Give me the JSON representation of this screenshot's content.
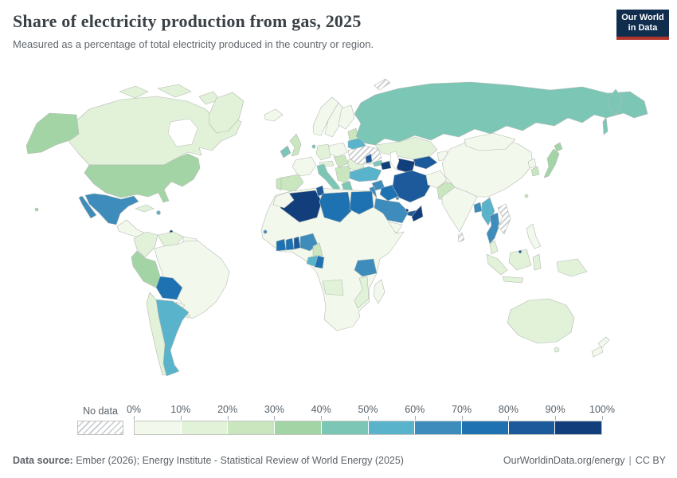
{
  "header": {
    "title": "Share of electricity production from gas, 2025",
    "subtitle": "Measured as a percentage of total electricity produced in the country or region.",
    "logo": {
      "line1": "Our World",
      "line2": "in Data",
      "bg": "#102d4e",
      "accent": "#b0342b"
    }
  },
  "legend": {
    "no_data_label": "No data",
    "tick_labels": [
      "0%",
      "10%",
      "20%",
      "30%",
      "40%",
      "50%",
      "60%",
      "70%",
      "80%",
      "90%",
      "100%"
    ],
    "colors": [
      "#f2f9ec",
      "#e1f2d9",
      "#c9e6bf",
      "#a3d4a5",
      "#7cc6b6",
      "#59b3ca",
      "#3d8cbc",
      "#1f72b2",
      "#1d5a9c",
      "#123f7c"
    ]
  },
  "footer": {
    "source_label": "Data source:",
    "source_text": " Ember (2026); Energy Institute - Statistical Review of World Energy (2025)",
    "link_text": "OurWorldinData.org/energy",
    "separator": "|",
    "license": "CC BY"
  },
  "chart_data": {
    "type": "heatmap",
    "map_type": "world-choropleth",
    "title": "Share of electricity production from gas, 2025",
    "unit": "% of total electricity production",
    "legend_buckets": [
      "0-10%",
      "10-20%",
      "20-30%",
      "30-40%",
      "40-50%",
      "50-60%",
      "60-70%",
      "70-80%",
      "80-90%",
      "90-100%",
      "No data"
    ],
    "regions": [
      {
        "key": "canada",
        "name": "Canada",
        "value": "10-20%"
      },
      {
        "key": "greenland",
        "name": "Greenland",
        "value": "10-20%"
      },
      {
        "key": "united-states",
        "name": "United States",
        "value": "30-40%"
      },
      {
        "key": "mexico",
        "name": "Mexico",
        "value": "60-70%"
      },
      {
        "key": "central-america",
        "name": "Central America",
        "value": "0-10%"
      },
      {
        "key": "cuba",
        "name": "Cuba",
        "value": "10-20%"
      },
      {
        "key": "dominican-republic",
        "name": "Dominican Republic",
        "value": "50-60%"
      },
      {
        "key": "trinidad-and-tobago",
        "name": "Trinidad and Tobago",
        "value": "90-100%"
      },
      {
        "key": "colombia",
        "name": "Colombia",
        "value": "10-20%"
      },
      {
        "key": "venezuela",
        "name": "Venezuela",
        "value": "10-20%"
      },
      {
        "key": "guyana-suriname",
        "name": "Guyana & Suriname",
        "value": "0-10%"
      },
      {
        "key": "brazil",
        "name": "Brazil",
        "value": "0-10%"
      },
      {
        "key": "peru",
        "name": "Peru",
        "value": "30-40%"
      },
      {
        "key": "bolivia",
        "name": "Bolivia",
        "value": "70-80%"
      },
      {
        "key": "paraguay",
        "name": "Paraguay",
        "value": "0-10%"
      },
      {
        "key": "uruguay",
        "name": "Uruguay",
        "value": "10-20%"
      },
      {
        "key": "chile",
        "name": "Chile",
        "value": "10-20%"
      },
      {
        "key": "argentina",
        "name": "Argentina",
        "value": "50-60%"
      },
      {
        "key": "iceland",
        "name": "Iceland",
        "value": "0-10%"
      },
      {
        "key": "ireland",
        "name": "Ireland",
        "value": "40-50%"
      },
      {
        "key": "united-kingdom",
        "name": "United Kingdom",
        "value": "20-30%"
      },
      {
        "key": "norway",
        "name": "Norway",
        "value": "0-10%"
      },
      {
        "key": "sweden",
        "name": "Sweden",
        "value": "0-10%"
      },
      {
        "key": "finland",
        "name": "Finland",
        "value": "0-10%"
      },
      {
        "key": "baltics",
        "name": "Baltic states",
        "value": "20-30%"
      },
      {
        "key": "poland",
        "name": "Poland",
        "value": "0-10%"
      },
      {
        "key": "germany",
        "name": "Germany",
        "value": "10-20%"
      },
      {
        "key": "netherlands",
        "name": "Netherlands",
        "value": "40-50%"
      },
      {
        "key": "france",
        "name": "France",
        "value": "0-10%"
      },
      {
        "key": "spain",
        "name": "Spain",
        "value": "20-30%"
      },
      {
        "key": "portugal",
        "name": "Portugal",
        "value": "20-30%"
      },
      {
        "key": "italy",
        "name": "Italy",
        "value": "40-50%"
      },
      {
        "key": "alpine-europe",
        "name": "Switzerland & Austria",
        "value": "10-20%"
      },
      {
        "key": "central-europe",
        "name": "Czechia, Slovakia & Hungary",
        "value": "20-30%"
      },
      {
        "key": "romania",
        "name": "Romania",
        "value": "10-20%"
      },
      {
        "key": "balkans",
        "name": "Balkans",
        "value": "20-30%"
      },
      {
        "key": "greece",
        "name": "Greece",
        "value": "40-50%"
      },
      {
        "key": "belarus",
        "name": "Belarus",
        "value": "50-60%"
      },
      {
        "key": "ukraine",
        "name": "Ukraine",
        "value": "No data"
      },
      {
        "key": "moldova",
        "name": "Moldova",
        "value": "80-90%"
      },
      {
        "key": "russia",
        "name": "Russia",
        "value": "40-50%"
      },
      {
        "key": "novaya-zemlya",
        "name": "Novaya Zemlya",
        "value": "No data"
      },
      {
        "key": "kazakhstan",
        "name": "Kazakhstan",
        "value": "10-20%"
      },
      {
        "key": "uzbekistan",
        "name": "Uzbekistan",
        "value": "80-90%"
      },
      {
        "key": "turkmenistan",
        "name": "Turkmenistan",
        "value": "90-100%"
      },
      {
        "key": "kyrgyzstan-tajikistan",
        "name": "Kyrgyzstan & Tajikistan",
        "value": "0-10%"
      },
      {
        "key": "georgia",
        "name": "Georgia",
        "value": "40-50%"
      },
      {
        "key": "azerbaijan",
        "name": "Azerbaijan",
        "value": "90-100%"
      },
      {
        "key": "turkey",
        "name": "Turkey",
        "value": "50-60%"
      },
      {
        "key": "syria",
        "name": "Syria",
        "value": "60-70%"
      },
      {
        "key": "israel-jordan",
        "name": "Israel & Jordan",
        "value": "60-70%"
      },
      {
        "key": "iraq",
        "name": "Iraq",
        "value": "70-80%"
      },
      {
        "key": "iran",
        "name": "Iran",
        "value": "80-90%"
      },
      {
        "key": "afghanistan",
        "name": "Afghanistan",
        "value": "0-10%"
      },
      {
        "key": "pakistan",
        "name": "Pakistan",
        "value": "20-30%"
      },
      {
        "key": "saudi-arabia",
        "name": "Saudi Arabia",
        "value": "60-70%"
      },
      {
        "key": "kuwait",
        "name": "Kuwait",
        "value": "60-70%"
      },
      {
        "key": "qatar",
        "name": "Qatar",
        "value": "90-100%"
      },
      {
        "key": "united-arab-emirates",
        "name": "United Arab Emirates",
        "value": "80-90%"
      },
      {
        "key": "oman",
        "name": "Oman",
        "value": "90-100%"
      },
      {
        "key": "yemen",
        "name": "Yemen",
        "value": "0-10%"
      },
      {
        "key": "morocco",
        "name": "Morocco",
        "value": "0-10%"
      },
      {
        "key": "algeria",
        "name": "Algeria",
        "value": "90-100%"
      },
      {
        "key": "tunisia",
        "name": "Tunisia",
        "value": "80-90%"
      },
      {
        "key": "libya",
        "name": "Libya",
        "value": "70-80%"
      },
      {
        "key": "egypt",
        "name": "Egypt",
        "value": "70-80%"
      },
      {
        "key": "africa-other",
        "name": "Other Africa (Sahel, Horn, Central & Southern Africa)",
        "value": "0-10%"
      },
      {
        "key": "senegal",
        "name": "Senegal",
        "value": "60-70%"
      },
      {
        "key": "cote-divoire",
        "name": "Côte d'Ivoire",
        "value": "70-80%"
      },
      {
        "key": "ghana",
        "name": "Ghana",
        "value": "70-80%"
      },
      {
        "key": "togo-benin",
        "name": "Togo & Benin",
        "value": "80-90%"
      },
      {
        "key": "nigeria",
        "name": "Nigeria",
        "value": "60-70%"
      },
      {
        "key": "cameroon",
        "name": "Cameroon",
        "value": "20-30%"
      },
      {
        "key": "gabon",
        "name": "Gabon",
        "value": "50-60%"
      },
      {
        "key": "republic-of-congo",
        "name": "Republic of the Congo",
        "value": "70-80%"
      },
      {
        "key": "tanzania",
        "name": "Tanzania",
        "value": "60-70%"
      },
      {
        "key": "mozambique",
        "name": "Mozambique",
        "value": "10-20%"
      },
      {
        "key": "angola",
        "name": "Angola",
        "value": "10-20%"
      },
      {
        "key": "madagascar",
        "name": "Madagascar",
        "value": "0-10%"
      },
      {
        "key": "india",
        "name": "India",
        "value": "0-10%"
      },
      {
        "key": "bangladesh",
        "name": "Bangladesh",
        "value": "60-70%"
      },
      {
        "key": "sri-lanka",
        "name": "Sri Lanka",
        "value": "No data"
      },
      {
        "key": "myanmar",
        "name": "Myanmar",
        "value": "50-60%"
      },
      {
        "key": "thailand",
        "name": "Thailand",
        "value": "60-70%"
      },
      {
        "key": "laos-vietnam",
        "name": "Laos & Vietnam",
        "value": "No data"
      },
      {
        "key": "malaysia",
        "name": "Malaysia",
        "value": "10-20%"
      },
      {
        "key": "indonesia",
        "name": "Indonesia",
        "value": "10-20%"
      },
      {
        "key": "brunei",
        "name": "Brunei",
        "value": "80-90%"
      },
      {
        "key": "philippines",
        "name": "Philippines",
        "value": "0-10%"
      },
      {
        "key": "china",
        "name": "China",
        "value": "0-10%"
      },
      {
        "key": "mongolia",
        "name": "Mongolia",
        "value": "0-10%"
      },
      {
        "key": "north-korea",
        "name": "North Korea",
        "value": "0-10%"
      },
      {
        "key": "south-korea",
        "name": "South Korea",
        "value": "20-30%"
      },
      {
        "key": "japan",
        "name": "Japan",
        "value": "30-40%"
      },
      {
        "key": "taiwan",
        "name": "Taiwan",
        "value": "20-30%"
      },
      {
        "key": "papua-new-guinea",
        "name": "Papua New Guinea",
        "value": "10-20%"
      },
      {
        "key": "australia",
        "name": "Australia",
        "value": "10-20%"
      },
      {
        "key": "new-zealand",
        "name": "New Zealand",
        "value": "0-10%"
      }
    ]
  }
}
